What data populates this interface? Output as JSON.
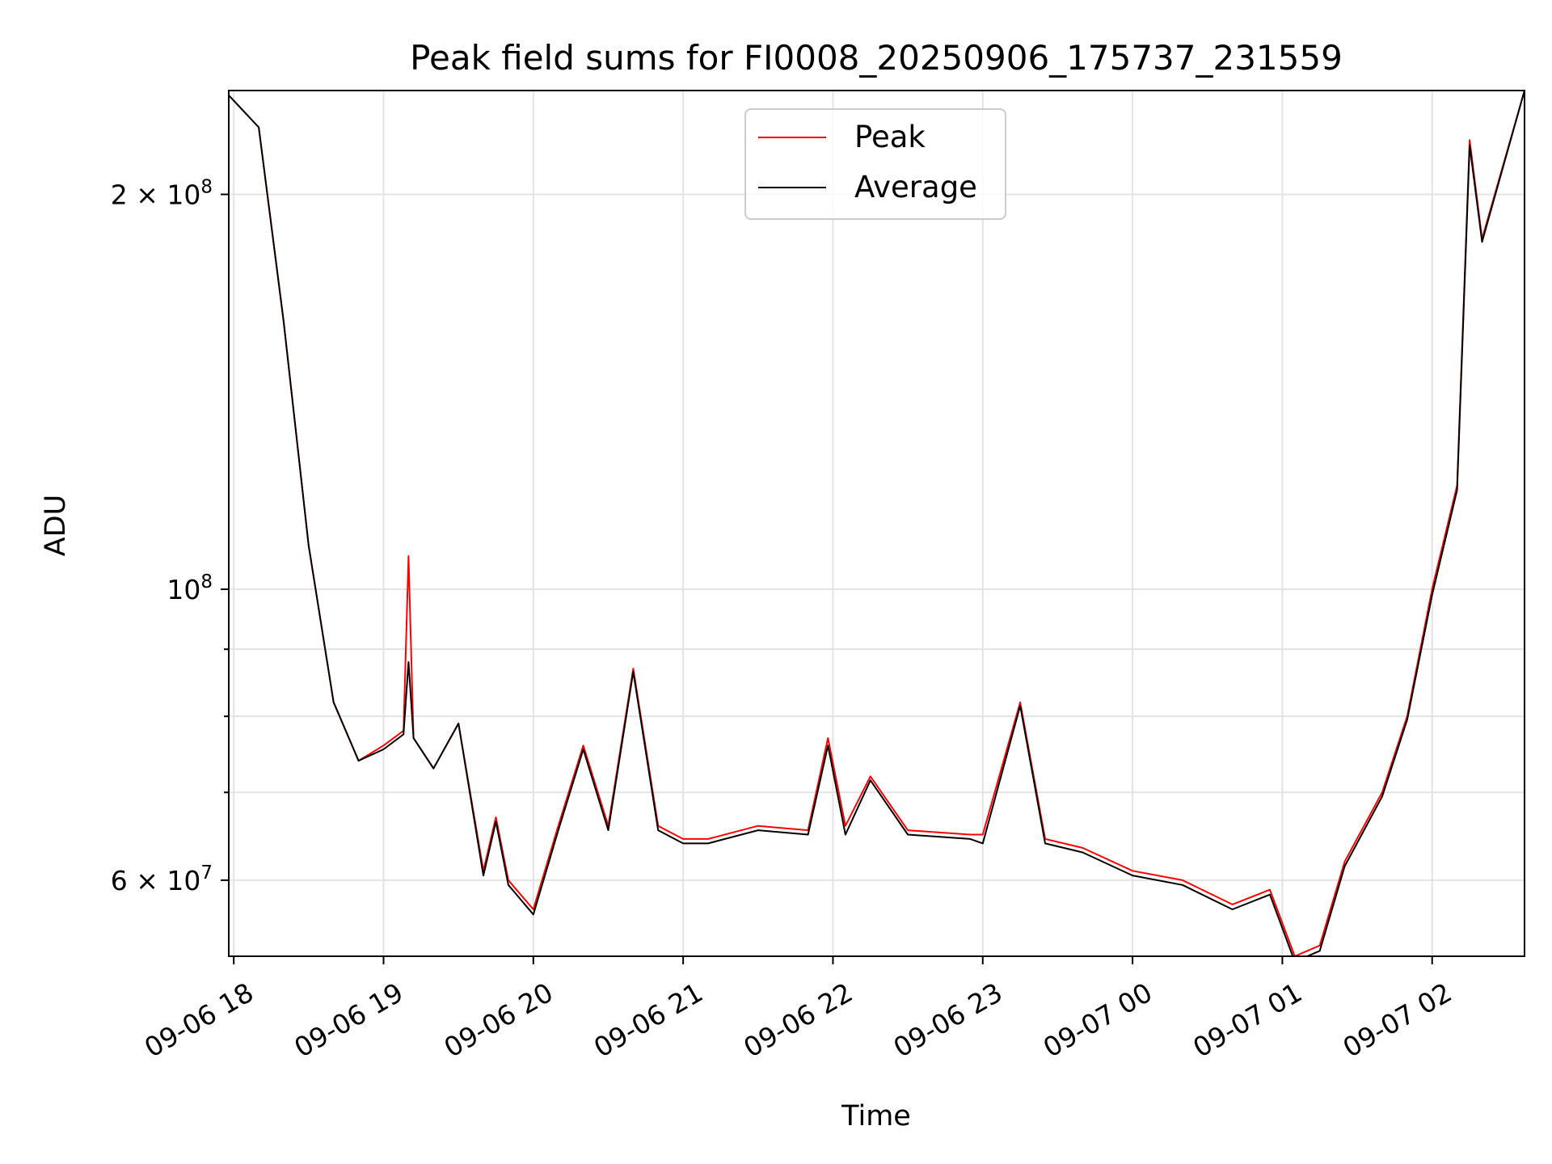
{
  "chart_data": {
    "type": "line",
    "title": "Peak field sums for FI0008_20250906_175737_231559",
    "xlabel": "Time",
    "ylabel": "ADU",
    "y_scale": "log",
    "ylim": [
      52500000,
      240000000
    ],
    "xlim": [
      "2025-09-06 17:58",
      "2025-09-07 02:37"
    ],
    "grid": true,
    "legend_position": "upper-center",
    "x_ticks": [
      {
        "value": "2025-09-06 18:00",
        "label": "09-06 18"
      },
      {
        "value": "2025-09-06 19:00",
        "label": "09-06 19"
      },
      {
        "value": "2025-09-06 20:00",
        "label": "09-06 20"
      },
      {
        "value": "2025-09-06 21:00",
        "label": "09-06 21"
      },
      {
        "value": "2025-09-06 22:00",
        "label": "09-06 22"
      },
      {
        "value": "2025-09-06 23:00",
        "label": "09-06 23"
      },
      {
        "value": "2025-09-07 00:00",
        "label": "09-07 00"
      },
      {
        "value": "2025-09-07 01:00",
        "label": "09-07 01"
      },
      {
        "value": "2025-09-07 02:00",
        "label": "09-07 02"
      }
    ],
    "y_major_ticks": [
      {
        "value": 60000000,
        "base": "6 × 10",
        "exp": "7"
      },
      {
        "value": 100000000,
        "base": "10",
        "exp": "8"
      },
      {
        "value": 200000000,
        "base": "2 × 10",
        "exp": "8"
      }
    ],
    "y_minor_ticks": [
      70000000,
      80000000,
      90000000
    ],
    "series": [
      {
        "name": "Peak",
        "color": "#ff0000",
        "x": [
          "2025-09-06 17:58",
          "2025-09-06 18:10",
          "2025-09-06 18:20",
          "2025-09-06 18:30",
          "2025-09-06 18:40",
          "2025-09-06 18:50",
          "2025-09-06 19:00",
          "2025-09-06 19:08",
          "2025-09-06 19:10",
          "2025-09-06 19:12",
          "2025-09-06 19:20",
          "2025-09-06 19:30",
          "2025-09-06 19:40",
          "2025-09-06 19:45",
          "2025-09-06 19:50",
          "2025-09-06 20:00",
          "2025-09-06 20:10",
          "2025-09-06 20:20",
          "2025-09-06 20:30",
          "2025-09-06 20:40",
          "2025-09-06 20:50",
          "2025-09-06 21:00",
          "2025-09-06 21:10",
          "2025-09-06 21:30",
          "2025-09-06 21:50",
          "2025-09-06 21:58",
          "2025-09-06 22:05",
          "2025-09-06 22:15",
          "2025-09-06 22:30",
          "2025-09-06 22:55",
          "2025-09-06 23:00",
          "2025-09-06 23:15",
          "2025-09-06 23:25",
          "2025-09-06 23:40",
          "2025-09-07 00:00",
          "2025-09-07 00:20",
          "2025-09-07 00:40",
          "2025-09-07 00:55",
          "2025-09-07 01:05",
          "2025-09-07 01:15",
          "2025-09-07 01:25",
          "2025-09-07 01:40",
          "2025-09-07 01:50",
          "2025-09-07 02:00",
          "2025-09-07 02:10",
          "2025-09-07 02:15",
          "2025-09-07 02:20",
          "2025-09-07 02:37"
        ],
        "y": [
          238000000,
          225000000,
          160000000,
          108000000,
          82000000,
          74000000,
          76000000,
          78000000,
          106000000,
          77000000,
          73000000,
          79000000,
          61000000,
          67000000,
          60000000,
          57000000,
          66000000,
          76000000,
          66000000,
          87000000,
          66000000,
          64500000,
          64500000,
          66000000,
          65500000,
          77000000,
          66000000,
          72000000,
          65500000,
          65000000,
          65000000,
          82000000,
          64500000,
          63500000,
          61000000,
          60000000,
          57500000,
          59000000,
          52500000,
          53500000,
          62000000,
          70000000,
          80000000,
          100000000,
          120000000,
          220000000,
          185000000,
          240000000
        ]
      },
      {
        "name": "Average",
        "color": "#000000",
        "x": [
          "2025-09-06 17:58",
          "2025-09-06 18:10",
          "2025-09-06 18:20",
          "2025-09-06 18:30",
          "2025-09-06 18:40",
          "2025-09-06 18:50",
          "2025-09-06 19:00",
          "2025-09-06 19:08",
          "2025-09-06 19:10",
          "2025-09-06 19:12",
          "2025-09-06 19:20",
          "2025-09-06 19:30",
          "2025-09-06 19:40",
          "2025-09-06 19:45",
          "2025-09-06 19:50",
          "2025-09-06 20:00",
          "2025-09-06 20:10",
          "2025-09-06 20:20",
          "2025-09-06 20:30",
          "2025-09-06 20:40",
          "2025-09-06 20:50",
          "2025-09-06 21:00",
          "2025-09-06 21:10",
          "2025-09-06 21:30",
          "2025-09-06 21:50",
          "2025-09-06 21:58",
          "2025-09-06 22:05",
          "2025-09-06 22:15",
          "2025-09-06 22:30",
          "2025-09-06 22:55",
          "2025-09-06 23:00",
          "2025-09-06 23:15",
          "2025-09-06 23:25",
          "2025-09-06 23:40",
          "2025-09-07 00:00",
          "2025-09-07 00:20",
          "2025-09-07 00:40",
          "2025-09-07 00:55",
          "2025-09-07 01:05",
          "2025-09-07 01:15",
          "2025-09-07 01:25",
          "2025-09-07 01:40",
          "2025-09-07 01:50",
          "2025-09-07 02:00",
          "2025-09-07 02:10",
          "2025-09-07 02:15",
          "2025-09-07 02:20",
          "2025-09-07 02:37"
        ],
        "y": [
          238000000,
          225000000,
          160000000,
          108000000,
          82000000,
          74000000,
          75500000,
          77500000,
          88000000,
          77000000,
          73000000,
          79000000,
          60500000,
          66500000,
          59500000,
          56500000,
          65500000,
          75500000,
          65500000,
          86500000,
          65500000,
          64000000,
          64000000,
          65500000,
          65000000,
          76000000,
          65000000,
          71500000,
          65000000,
          64500000,
          64000000,
          81500000,
          64000000,
          63000000,
          60500000,
          59500000,
          57000000,
          58500000,
          52000000,
          53000000,
          61500000,
          69500000,
          79500000,
          99000000,
          119000000,
          218000000,
          184000000,
          240000000
        ]
      }
    ]
  }
}
